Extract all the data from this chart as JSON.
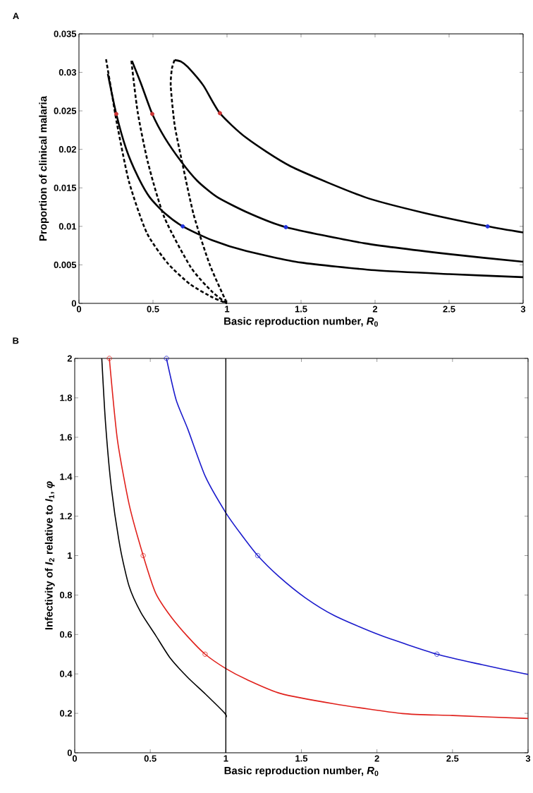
{
  "chart_data": [
    {
      "type": "line",
      "title": "A",
      "xlabel": "Basic reproduction number, *R*$_{0}$",
      "ylabel": "Proportion of clinical malaria",
      "xlim": [
        0,
        3
      ],
      "ylim": [
        0,
        0.035
      ],
      "xticks": [
        0,
        0.5,
        1,
        1.5,
        2,
        2.5,
        3
      ],
      "yticks": [
        0,
        0.005,
        0.01,
        0.015,
        0.02,
        0.025,
        0.03,
        0.035
      ],
      "grid": false,
      "series": [
        {
          "line_style": "solid",
          "color": "#000000",
          "x": [
            0.195,
            0.252,
            0.32,
            0.397,
            0.477,
            0.58,
            0.701,
            0.9,
            1.13,
            1.5,
            2.0,
            2.5,
            3.0
          ],
          "values": [
            0.0298,
            0.0246,
            0.02,
            0.0165,
            0.0138,
            0.0117,
            0.01,
            0.0082,
            0.0068,
            0.0053,
            0.0043,
            0.0038,
            0.0034
          ]
        },
        {
          "line_style": "solid",
          "color": "#000000",
          "x": [
            0.358,
            0.42,
            0.495,
            0.58,
            0.695,
            0.8,
            0.934,
            1.15,
            1.397,
            1.93,
            2.5,
            3.0
          ],
          "values": [
            0.0315,
            0.0285,
            0.0246,
            0.0215,
            0.0183,
            0.0159,
            0.0138,
            0.0117,
            0.0099,
            0.0078,
            0.0064,
            0.0054
          ]
        },
        {
          "line_style": "solid",
          "color": "#000000",
          "x": [
            0.646,
            0.69,
            0.735,
            0.84,
            0.952,
            1.13,
            1.43,
            1.93,
            2.32,
            2.76,
            3.0
          ],
          "values": [
            0.0316,
            0.0314,
            0.0307,
            0.0283,
            0.0247,
            0.0215,
            0.0178,
            0.0138,
            0.0118,
            0.01,
            0.0092
          ]
        },
        {
          "line_style": "dashed",
          "color": "#000000",
          "x": [
            0.183,
            0.22,
            0.258,
            0.338,
            0.457,
            0.6,
            0.75,
            0.9,
            1.0
          ],
          "values": [
            0.0317,
            0.0275,
            0.0232,
            0.0158,
            0.0092,
            0.0052,
            0.0025,
            0.0008,
            0
          ]
        },
        {
          "line_style": "dashed",
          "color": "#000000",
          "x": [
            0.354,
            0.397,
            0.467,
            0.576,
            0.755,
            0.9,
            1.0
          ],
          "values": [
            0.0315,
            0.0248,
            0.0182,
            0.0112,
            0.0047,
            0.0015,
            0
          ]
        },
        {
          "line_style": "dashed",
          "color": "#000000",
          "x": [
            0.646,
            0.628,
            0.62,
            0.646,
            0.695,
            0.775,
            0.884,
            1.0
          ],
          "values": [
            0.0316,
            0.0305,
            0.0282,
            0.0232,
            0.0185,
            0.0115,
            0.005,
            0
          ]
        },
        {
          "type": "scatter",
          "marker": "circle",
          "color": "#cc3333",
          "x": [
            0.252,
            0.495,
            0.952
          ],
          "values": [
            0.0246,
            0.0246,
            0.0247
          ]
        },
        {
          "type": "scatter",
          "marker": "circle",
          "color": "#2233dd",
          "x": [
            0.701,
            1.397,
            2.76
          ],
          "values": [
            0.01,
            0.0099,
            0.01
          ]
        }
      ]
    },
    {
      "type": "line",
      "title": "B",
      "xlabel": "Basic reproduction number, *R*$_{0}$",
      "ylabel": "Infectivity of *I*$_{2}$ relative to *I*$_{1}$, *φ*",
      "xlim": [
        0,
        3
      ],
      "ylim": [
        0,
        2
      ],
      "xticks": [
        0,
        0.5,
        1,
        1.5,
        2,
        2.5,
        3
      ],
      "yticks": [
        0,
        0.2,
        0.4,
        0.6,
        0.8,
        1,
        1.2,
        1.4,
        1.6,
        1.8,
        2
      ],
      "grid": false,
      "ref_lines": [
        {
          "axis": "x",
          "value": 1,
          "color": "#000000"
        }
      ],
      "series": [
        {
          "color": "#000000",
          "x": [
            0.179,
            0.204,
            0.243,
            0.301,
            0.36,
            0.437,
            0.535,
            0.632,
            0.749,
            0.865,
            0.995,
            1.0
          ],
          "values": [
            2,
            1.67,
            1.34,
            1.04,
            0.844,
            0.712,
            0.596,
            0.48,
            0.381,
            0.298,
            0.199,
            0.18
          ]
        },
        {
          "color": "#e0201b",
          "x": [
            0.229,
            0.282,
            0.36,
            0.453,
            0.535,
            0.632,
            0.749,
            0.863,
            1.0,
            1.137,
            1.361,
            1.72,
            2.168,
            2.5,
            3.0
          ],
          "values": [
            2,
            1.59,
            1.26,
            1.0,
            0.811,
            0.695,
            0.588,
            0.5,
            0.427,
            0.372,
            0.301,
            0.248,
            0.199,
            0.189,
            0.174
          ]
        },
        {
          "color": "#1a1acc",
          "x": [
            0.607,
            0.671,
            0.749,
            0.865,
            1.0,
            1.099,
            1.211,
            1.351,
            1.526,
            1.72,
            2.012,
            2.397,
            2.693,
            3.0
          ],
          "values": [
            2,
            1.79,
            1.64,
            1.4,
            1.217,
            1.11,
            1.0,
            0.894,
            0.786,
            0.695,
            0.599,
            0.5,
            0.447,
            0.397
          ]
        },
        {
          "type": "scatter",
          "marker": "circle",
          "color": "#e0201b",
          "x": [
            0.229,
            0.453,
            0.863
          ],
          "values": [
            2,
            1.0,
            0.5
          ]
        },
        {
          "type": "scatter",
          "marker": "circle",
          "color": "#1a1acc",
          "x": [
            0.607,
            1.211,
            2.397
          ],
          "values": [
            2,
            1.0,
            0.5
          ]
        }
      ]
    }
  ]
}
